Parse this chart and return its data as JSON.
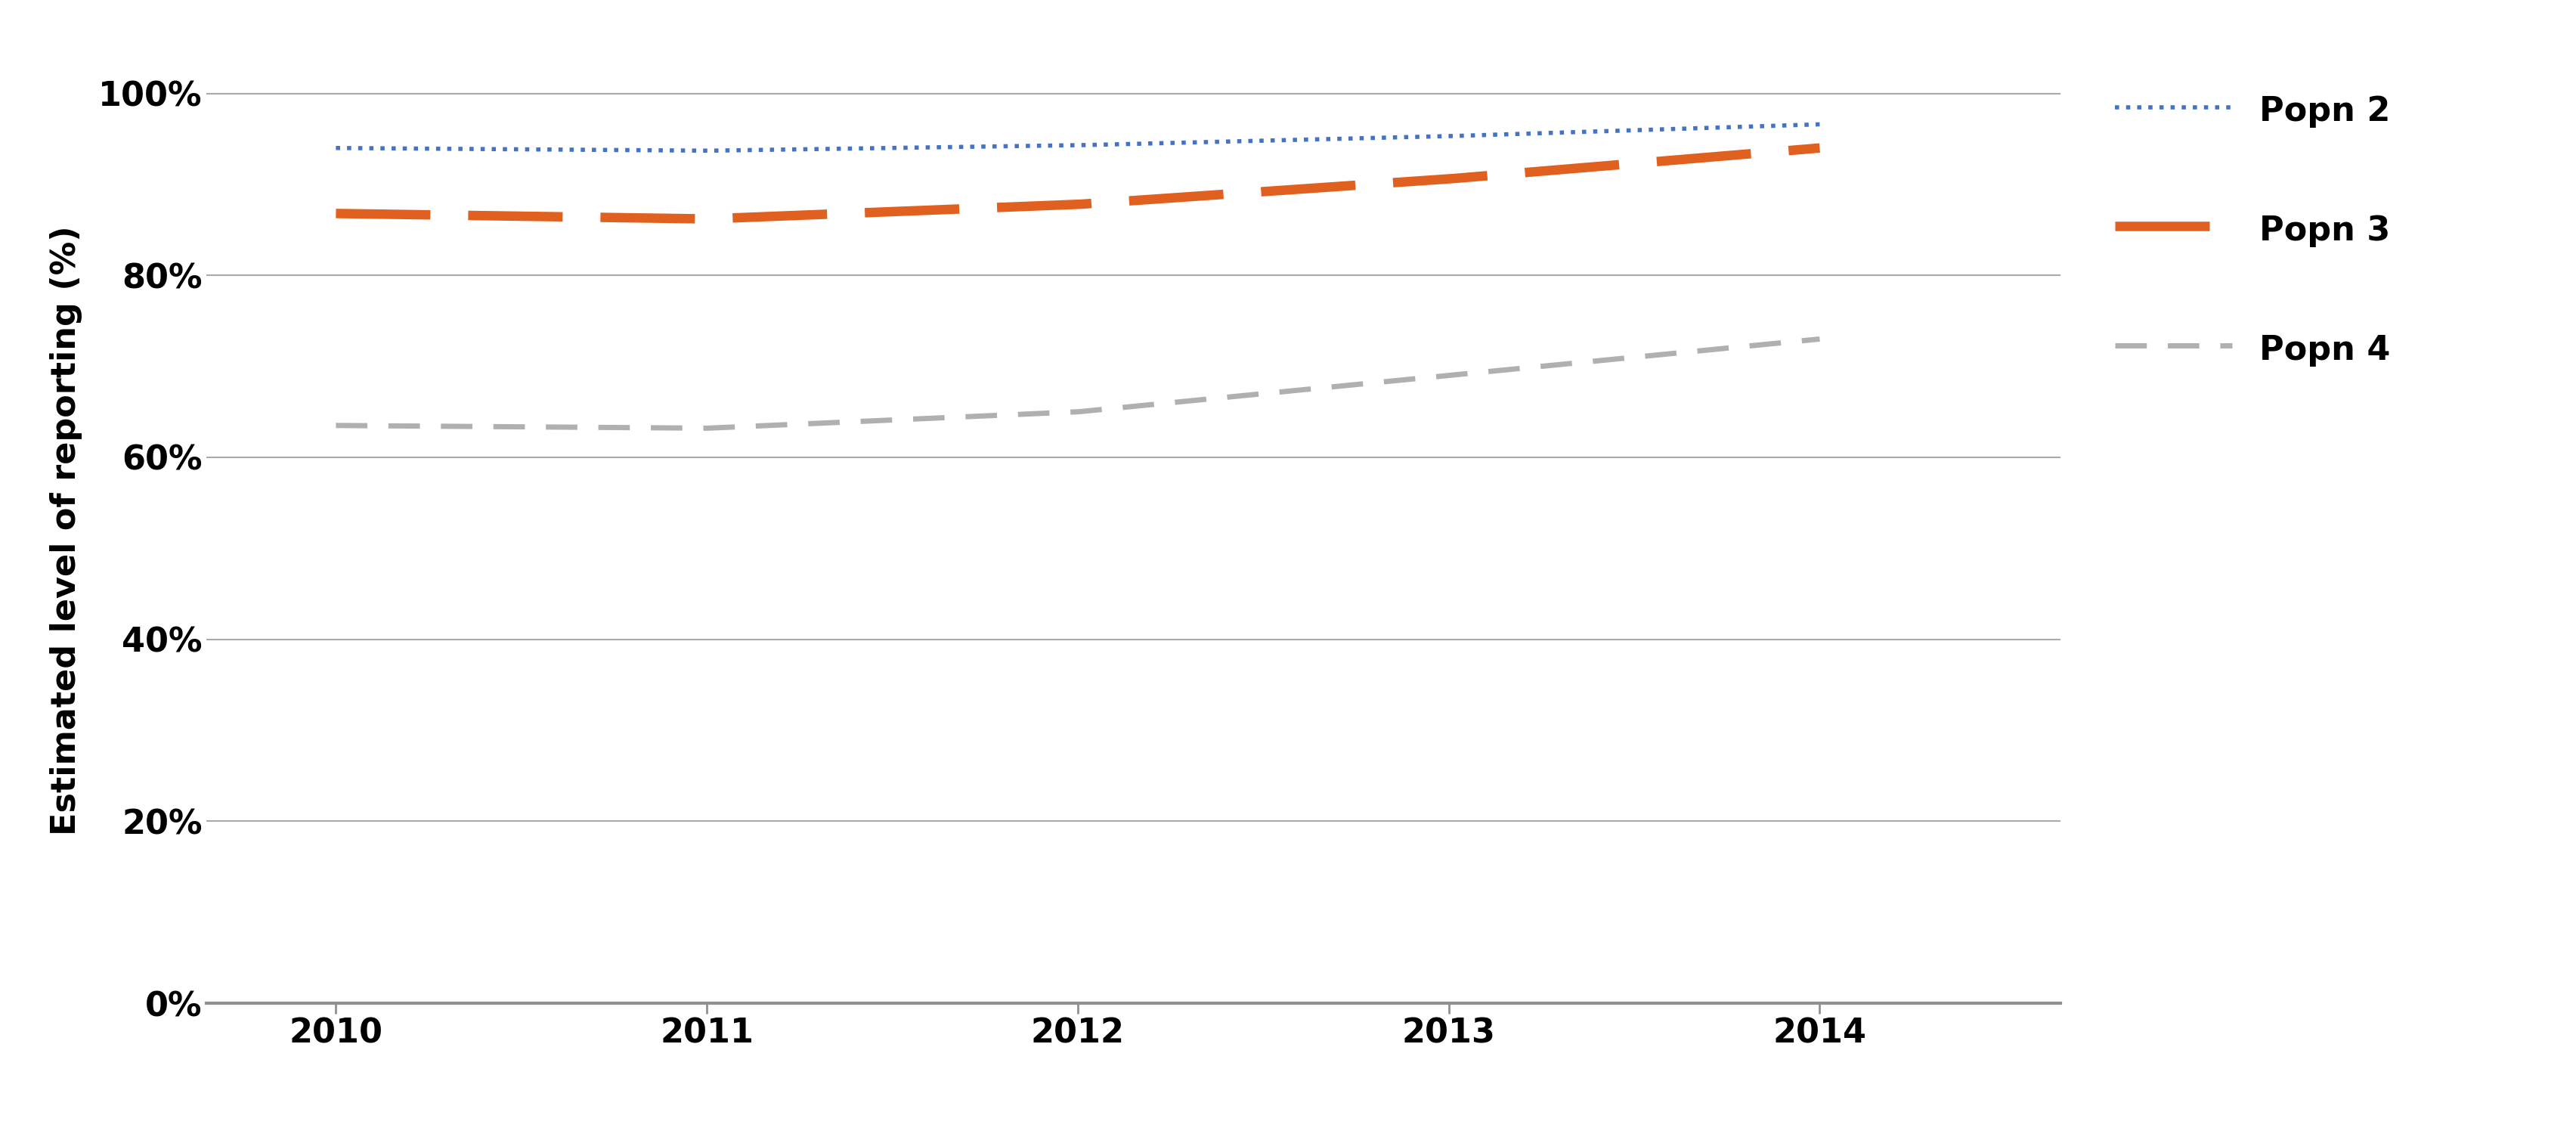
{
  "title": "",
  "ylabel": "Estimated level of reporting (%)",
  "xlabel": "",
  "years": [
    2010,
    2011,
    2012,
    2013,
    2014
  ],
  "popn2": [
    0.94,
    0.937,
    0.943,
    0.953,
    0.966
  ],
  "popn3": [
    0.868,
    0.862,
    0.878,
    0.906,
    0.94
  ],
  "popn4": [
    0.635,
    0.632,
    0.65,
    0.69,
    0.73
  ],
  "color_popn2": "#4472C4",
  "color_popn3": "#E06020",
  "color_popn4": "#B0B0B0",
  "ylim": [
    0.0,
    1.04
  ],
  "yticks": [
    0.0,
    0.2,
    0.4,
    0.6,
    0.8,
    1.0
  ],
  "ytick_labels": [
    "0%",
    "20%",
    "40%",
    "60%",
    "80%",
    "100%"
  ],
  "legend_labels": [
    "Popn 2",
    "Popn 3",
    "Popn 4"
  ],
  "background_color": "#FFFFFF",
  "grid_color": "#AAAAAA",
  "label_fontsize": 32,
  "tick_fontsize": 32,
  "legend_fontsize": 32,
  "spine_color": "#909090"
}
